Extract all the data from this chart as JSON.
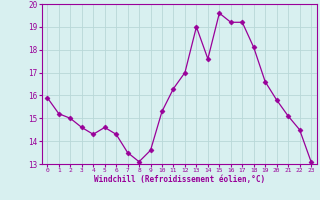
{
  "x": [
    0,
    1,
    2,
    3,
    4,
    5,
    6,
    7,
    8,
    9,
    10,
    11,
    12,
    13,
    14,
    15,
    16,
    17,
    18,
    19,
    20,
    21,
    22,
    23
  ],
  "y": [
    15.9,
    15.2,
    15.0,
    14.6,
    14.3,
    14.6,
    14.3,
    13.5,
    13.1,
    13.6,
    15.3,
    16.3,
    17.0,
    19.0,
    17.6,
    19.6,
    19.2,
    19.2,
    18.1,
    16.6,
    15.8,
    15.1,
    14.5,
    13.1
  ],
  "line_color": "#990099",
  "marker": "D",
  "marker_size": 2.5,
  "bg_color": "#d8f0f0",
  "grid_color": "#b8d8d8",
  "xlabel": "Windchill (Refroidissement éolien,°C)",
  "xlabel_color": "#990099",
  "tick_color": "#990099",
  "ylim": [
    13,
    20
  ],
  "xlim": [
    -0.5,
    23.5
  ],
  "yticks": [
    13,
    14,
    15,
    16,
    17,
    18,
    19,
    20
  ],
  "xticks": [
    0,
    1,
    2,
    3,
    4,
    5,
    6,
    7,
    8,
    9,
    10,
    11,
    12,
    13,
    14,
    15,
    16,
    17,
    18,
    19,
    20,
    21,
    22,
    23
  ]
}
